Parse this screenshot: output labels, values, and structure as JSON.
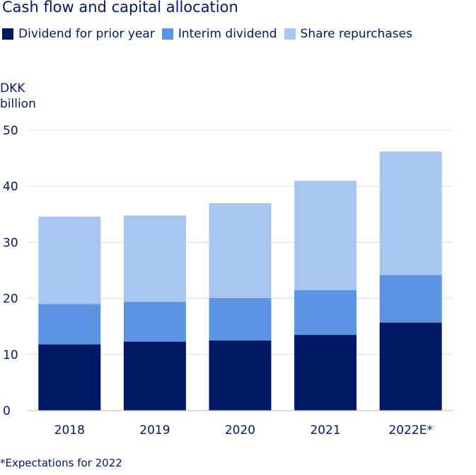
{
  "chart_data": {
    "type": "bar",
    "stacked": true,
    "title": "Cash flow and capital allocation",
    "ylabel_lines": [
      "DKK",
      "billion"
    ],
    "xlabel": "",
    "categories": [
      "2018",
      "2019",
      "2020",
      "2021",
      "2022E*"
    ],
    "series": [
      {
        "name": "Dividend for prior year",
        "color": "#001965",
        "values": [
          11.8,
          12.3,
          12.5,
          13.5,
          15.7
        ]
      },
      {
        "name": "Interim dividend",
        "color": "#5a94e3",
        "values": [
          7.2,
          7.1,
          7.6,
          8.0,
          8.5
        ]
      },
      {
        "name": "Share repurchases",
        "color": "#a9c6f0",
        "values": [
          15.6,
          15.4,
          16.9,
          19.5,
          22.0
        ]
      }
    ],
    "ylim": [
      0,
      50
    ],
    "yticks": [
      0,
      10,
      20,
      30,
      40,
      50
    ],
    "grid": true,
    "legend_position": "top-left",
    "footnote": "*Expectations for 2022"
  }
}
